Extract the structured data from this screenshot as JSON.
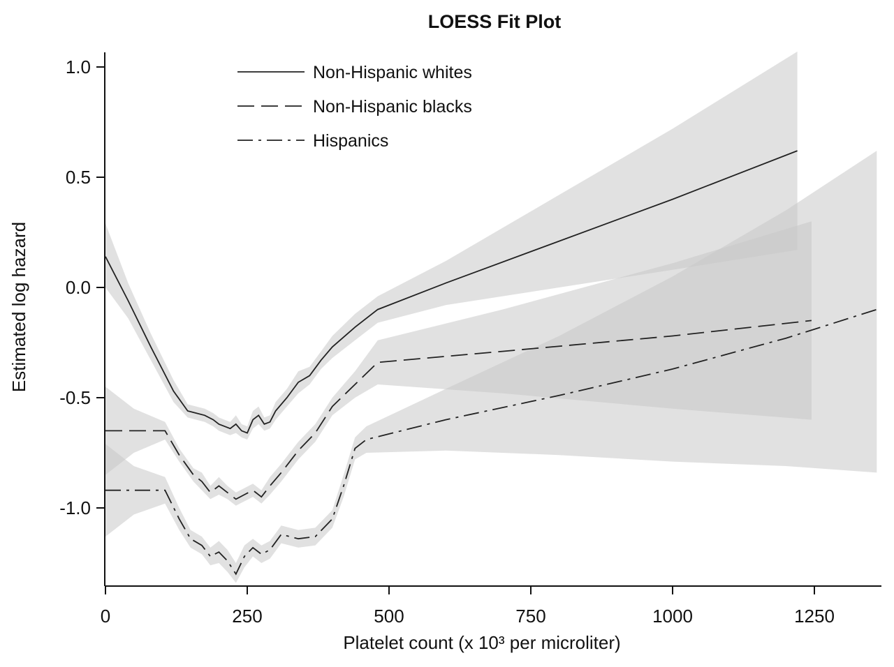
{
  "chart_data": {
    "type": "line",
    "title": "LOESS Fit Plot",
    "xlabel": "Platelet count (x 10³ per microliter)",
    "ylabel": "Estimated log hazard",
    "xlim": [
      0,
      1360
    ],
    "ylim": [
      -1.35,
      1.1
    ],
    "xticks": [
      0,
      250,
      500,
      750,
      1000,
      1250
    ],
    "xtick_labels": [
      "0",
      "250",
      "500",
      "750",
      "1000",
      "1250"
    ],
    "yticks": [
      1.0,
      0.5,
      0.0,
      -0.5,
      -1.0
    ],
    "ytick_labels": [
      "1.0",
      "0.5",
      "0.0",
      "-0.5",
      "-1.0"
    ],
    "legend_position": "top-left",
    "series": [
      {
        "name": "Non-Hispanic whites",
        "style": "solid",
        "x": [
          0,
          40,
          80,
          120,
          145,
          160,
          175,
          190,
          200,
          210,
          220,
          230,
          240,
          250,
          260,
          270,
          280,
          290,
          300,
          320,
          340,
          360,
          380,
          400,
          440,
          480,
          600,
          800,
          1000,
          1220
        ],
        "y": [
          0.14,
          -0.06,
          -0.27,
          -0.47,
          -0.56,
          -0.57,
          -0.58,
          -0.6,
          -0.62,
          -0.63,
          -0.64,
          -0.62,
          -0.65,
          -0.66,
          -0.6,
          -0.58,
          -0.62,
          -0.61,
          -0.56,
          -0.5,
          -0.43,
          -0.4,
          -0.33,
          -0.27,
          -0.18,
          -0.1,
          0.02,
          0.21,
          0.4,
          0.62
        ],
        "ci_lower": [
          0.0,
          -0.14,
          -0.33,
          -0.52,
          -0.59,
          -0.6,
          -0.61,
          -0.63,
          -0.65,
          -0.66,
          -0.67,
          -0.66,
          -0.68,
          -0.69,
          -0.64,
          -0.62,
          -0.65,
          -0.64,
          -0.6,
          -0.54,
          -0.48,
          -0.44,
          -0.37,
          -0.32,
          -0.24,
          -0.16,
          -0.08,
          0.0,
          0.08,
          0.17
        ],
        "ci_upper": [
          0.29,
          0.02,
          -0.21,
          -0.42,
          -0.53,
          -0.54,
          -0.55,
          -0.57,
          -0.59,
          -0.6,
          -0.61,
          -0.58,
          -0.62,
          -0.63,
          -0.56,
          -0.54,
          -0.59,
          -0.58,
          -0.52,
          -0.46,
          -0.38,
          -0.36,
          -0.29,
          -0.22,
          -0.12,
          -0.04,
          0.12,
          0.42,
          0.72,
          1.07
        ]
      },
      {
        "name": "Non-Hispanic blacks",
        "style": "dashed",
        "x": [
          0,
          50,
          105,
          130,
          155,
          170,
          185,
          200,
          215,
          230,
          245,
          260,
          275,
          290,
          310,
          340,
          370,
          400,
          440,
          480,
          700,
          1000,
          1245
        ],
        "y": [
          -0.65,
          -0.65,
          -0.65,
          -0.76,
          -0.85,
          -0.88,
          -0.93,
          -0.9,
          -0.93,
          -0.96,
          -0.94,
          -0.92,
          -0.95,
          -0.9,
          -0.84,
          -0.74,
          -0.66,
          -0.54,
          -0.44,
          -0.34,
          -0.29,
          -0.22,
          -0.15
        ],
        "ci_lower": [
          -0.85,
          -0.75,
          -0.69,
          -0.79,
          -0.88,
          -0.92,
          -0.96,
          -0.94,
          -0.96,
          -0.99,
          -0.97,
          -0.95,
          -0.98,
          -0.94,
          -0.88,
          -0.78,
          -0.7,
          -0.58,
          -0.5,
          -0.44,
          -0.48,
          -0.55,
          -0.6
        ],
        "ci_upper": [
          -0.45,
          -0.55,
          -0.61,
          -0.73,
          -0.82,
          -0.84,
          -0.9,
          -0.86,
          -0.9,
          -0.93,
          -0.91,
          -0.89,
          -0.92,
          -0.86,
          -0.8,
          -0.7,
          -0.62,
          -0.5,
          -0.38,
          -0.24,
          -0.1,
          0.11,
          0.3
        ]
      },
      {
        "name": "Hispanics",
        "style": "dashdot",
        "x": [
          0,
          50,
          105,
          130,
          150,
          170,
          185,
          200,
          215,
          230,
          245,
          260,
          275,
          290,
          310,
          340,
          370,
          400,
          420,
          440,
          460,
          600,
          800,
          1000,
          1200,
          1360
        ],
        "y": [
          -0.92,
          -0.92,
          -0.92,
          -1.05,
          -1.14,
          -1.17,
          -1.22,
          -1.2,
          -1.24,
          -1.3,
          -1.22,
          -1.18,
          -1.21,
          -1.19,
          -1.12,
          -1.14,
          -1.13,
          -1.05,
          -0.9,
          -0.73,
          -0.69,
          -0.6,
          -0.49,
          -0.37,
          -0.23,
          -0.1
        ],
        "ci_lower": [
          -1.13,
          -1.03,
          -0.98,
          -1.1,
          -1.18,
          -1.21,
          -1.26,
          -1.25,
          -1.29,
          -1.34,
          -1.27,
          -1.22,
          -1.25,
          -1.23,
          -1.16,
          -1.18,
          -1.17,
          -1.09,
          -0.95,
          -0.78,
          -0.75,
          -0.74,
          -0.76,
          -0.79,
          -0.81,
          -0.84
        ],
        "ci_upper": [
          -0.71,
          -0.81,
          -0.86,
          -1.0,
          -1.1,
          -1.13,
          -1.18,
          -1.15,
          -1.19,
          -1.25,
          -1.17,
          -1.14,
          -1.17,
          -1.15,
          -1.08,
          -1.1,
          -1.09,
          -1.01,
          -0.85,
          -0.68,
          -0.63,
          -0.46,
          -0.22,
          0.05,
          0.35,
          0.62
        ]
      }
    ]
  }
}
